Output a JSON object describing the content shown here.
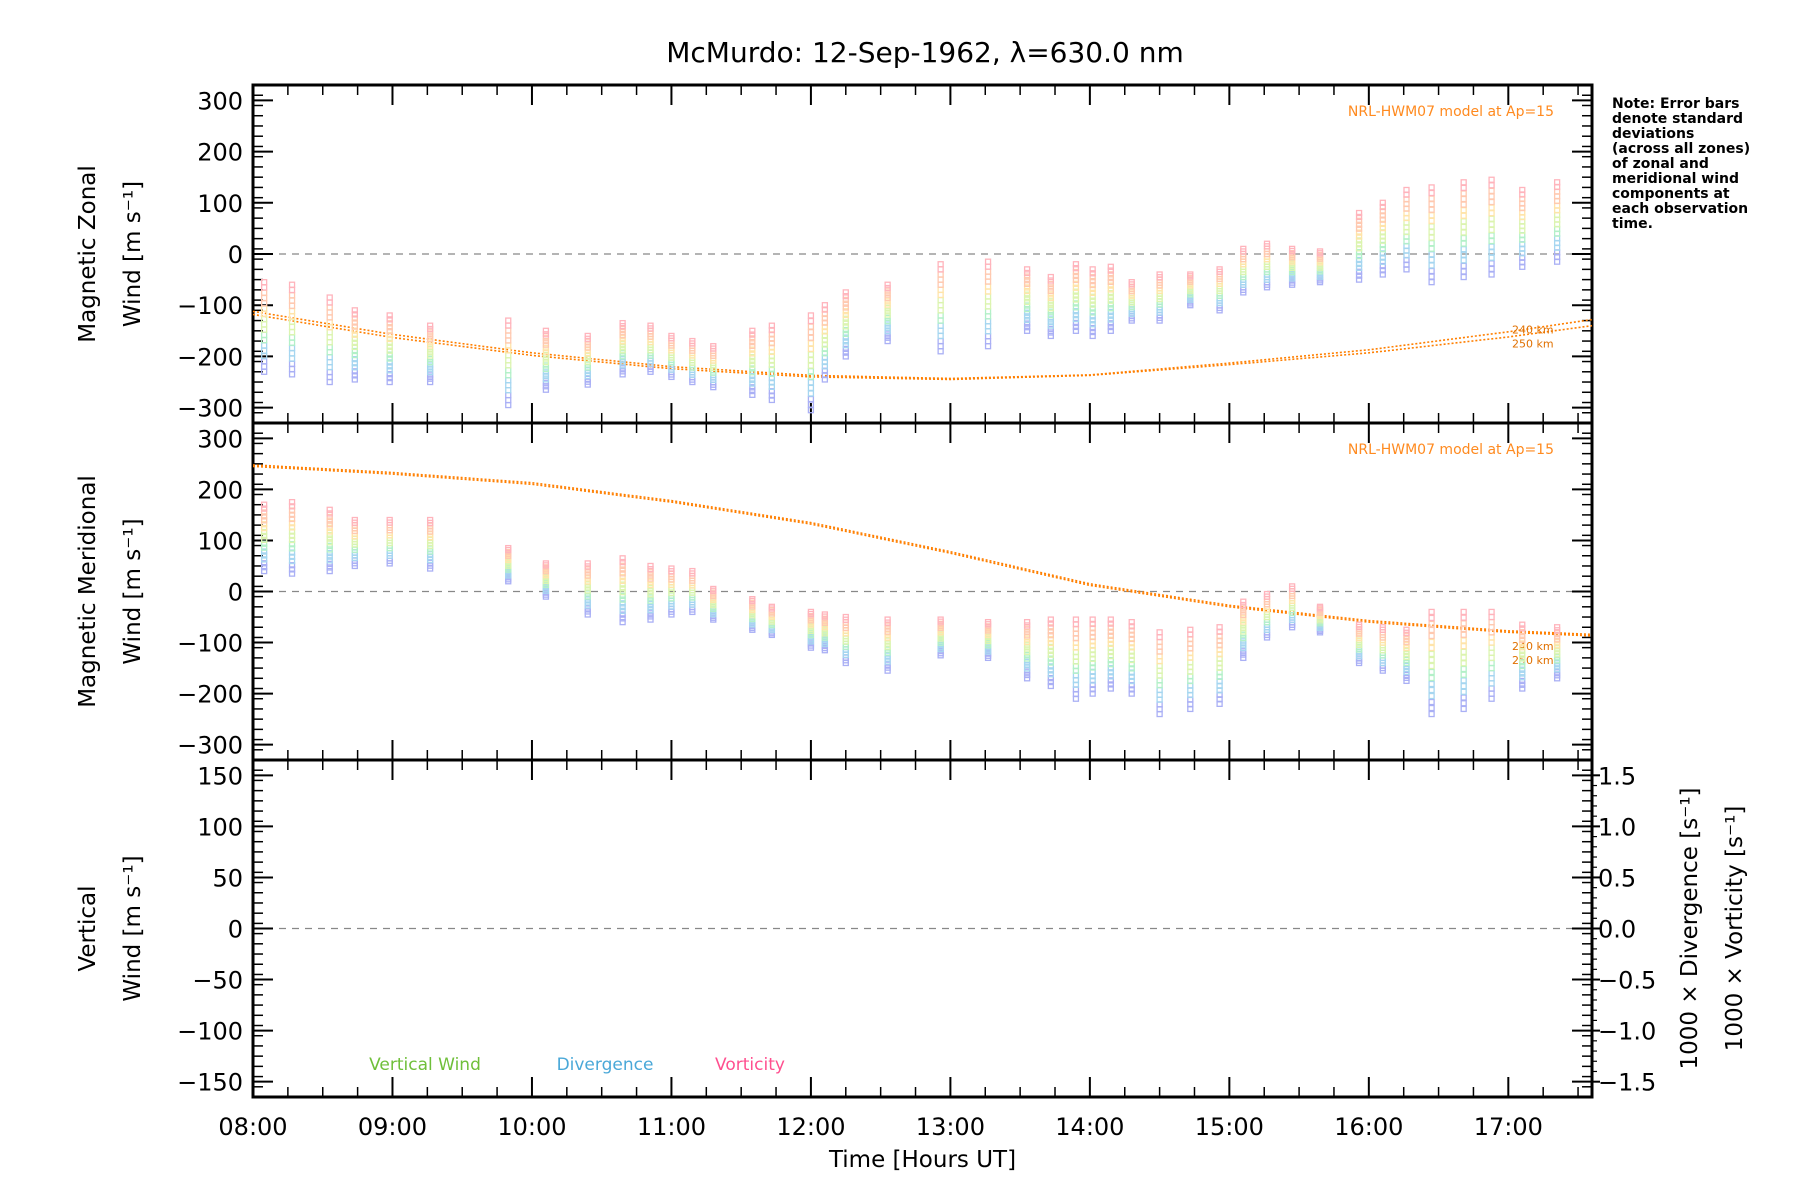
{
  "title": "McMurdo: 12-Sep-1962, λ=630.0 nm",
  "note": [
    "Note: Error bars",
    "denote standard",
    "deviations",
    "(across all zones)",
    "of zonal and",
    "meridional wind",
    "components at",
    "each observation",
    "time."
  ],
  "colors": {
    "model": "#ff7f00",
    "vertical": "#6fbf3a",
    "divergence": "#4aa8d8",
    "vorticity": "#ff4f8f",
    "zero_line": "#888888"
  },
  "chart_data": [
    {
      "type": "scatter",
      "panel": "zonal",
      "ylabel_line1": "Magnetic Zonal",
      "ylabel_line2": "Wind",
      "yunit": "[m s⁻¹]",
      "ylim": [
        -330,
        330
      ],
      "yticks": [
        300,
        200,
        100,
        0,
        -100,
        -200,
        -300
      ],
      "xlim": [
        8.0,
        17.6
      ],
      "zero_line": true,
      "model_label": "NRL-HWM07 model at Ap=15",
      "model_levels": [
        "240 km",
        "250 km"
      ],
      "model": {
        "x": [
          8.0,
          9.0,
          10.0,
          11.0,
          12.0,
          13.0,
          14.0,
          15.0,
          16.0,
          17.0,
          17.6
        ],
        "y240": [
          -112,
          -157,
          -193,
          -220,
          -237,
          -243,
          -236,
          -213,
          -187,
          -152,
          -128
        ],
        "y250": [
          -118,
          -163,
          -198,
          -224,
          -240,
          -245,
          -237,
          -216,
          -193,
          -162,
          -140
        ]
      },
      "observations": {
        "time": [
          8.08,
          8.28,
          8.55,
          8.73,
          8.98,
          9.27,
          9.83,
          10.1,
          10.4,
          10.65,
          10.85,
          11.0,
          11.15,
          11.3,
          11.58,
          11.72,
          12.0,
          12.1,
          12.25,
          12.55,
          12.93,
          13.27,
          13.55,
          13.72,
          13.9,
          14.02,
          14.15,
          14.3,
          14.5,
          14.72,
          14.93,
          15.1,
          15.27,
          15.45,
          15.65,
          15.93,
          16.1,
          16.27,
          16.45,
          16.68,
          16.88,
          17.1,
          17.35
        ],
        "low": [
          -230,
          -235,
          -250,
          -245,
          -250,
          -250,
          -295,
          -265,
          -255,
          -235,
          -230,
          -240,
          -250,
          -260,
          -275,
          -285,
          -305,
          -245,
          -200,
          -170,
          -190,
          -180,
          -150,
          -160,
          -150,
          -160,
          -150,
          -130,
          -130,
          -100,
          -110,
          -75,
          -65,
          -60,
          -55,
          -50,
          -40,
          -30,
          -55,
          -45,
          -40,
          -25,
          -15
        ],
        "high": [
          -55,
          -60,
          -85,
          -110,
          -120,
          -140,
          -130,
          -150,
          -160,
          -135,
          -140,
          -160,
          -170,
          -180,
          -150,
          -140,
          -120,
          -100,
          -75,
          -60,
          -20,
          -15,
          -30,
          -45,
          -20,
          -30,
          -25,
          -55,
          -40,
          -40,
          -30,
          10,
          20,
          10,
          5,
          80,
          100,
          125,
          130,
          140,
          145,
          125,
          140
        ]
      }
    },
    {
      "type": "scatter",
      "panel": "meridional",
      "ylabel_line1": "Magnetic Meridional",
      "ylabel_line2": "Wind",
      "yunit": "[m s⁻¹]",
      "ylim": [
        -330,
        330
      ],
      "yticks": [
        300,
        200,
        100,
        0,
        -100,
        -200,
        -300
      ],
      "xlim": [
        8.0,
        17.6
      ],
      "zero_line": true,
      "model_label": "NRL-HWM07 model at Ap=15",
      "model_levels": [
        "240 km",
        "250 km"
      ],
      "model": {
        "x": [
          8.0,
          9.0,
          10.0,
          11.0,
          12.0,
          13.0,
          14.0,
          15.0,
          16.0,
          17.0,
          17.6
        ],
        "y240": [
          245,
          230,
          210,
          175,
          132,
          75,
          12,
          -30,
          -60,
          -80,
          -87
        ],
        "y250": [
          248,
          233,
          213,
          178,
          135,
          78,
          15,
          -27,
          -57,
          -77,
          -84
        ]
      },
      "observations": {
        "time": [
          8.08,
          8.28,
          8.55,
          8.73,
          8.98,
          9.27,
          9.83,
          10.1,
          10.4,
          10.65,
          10.85,
          11.0,
          11.15,
          11.3,
          11.58,
          11.72,
          12.0,
          12.1,
          12.25,
          12.55,
          12.93,
          13.27,
          13.55,
          13.72,
          13.9,
          14.02,
          14.15,
          14.3,
          14.5,
          14.72,
          14.93,
          15.1,
          15.27,
          15.45,
          15.65,
          15.93,
          16.1,
          16.27,
          16.45,
          16.68,
          16.88,
          17.1,
          17.35
        ],
        "low": [
          40,
          35,
          40,
          50,
          55,
          45,
          20,
          -10,
          -45,
          -60,
          -55,
          -45,
          -40,
          -55,
          -75,
          -85,
          -110,
          -115,
          -140,
          -155,
          -125,
          -130,
          -170,
          -185,
          -210,
          -200,
          -190,
          -200,
          -240,
          -230,
          -220,
          -130,
          -90,
          -70,
          -80,
          -140,
          -155,
          -175,
          -240,
          -230,
          -210,
          -190,
          -170
        ],
        "high": [
          170,
          175,
          160,
          140,
          140,
          140,
          85,
          55,
          55,
          65,
          50,
          45,
          40,
          5,
          -15,
          -30,
          -40,
          -45,
          -50,
          -55,
          -55,
          -60,
          -60,
          -55,
          -55,
          -55,
          -55,
          -60,
          -80,
          -75,
          -70,
          -20,
          -5,
          10,
          -30,
          -65,
          -70,
          -75,
          -40,
          -40,
          -40,
          -65,
          -70
        ]
      }
    },
    {
      "type": "line",
      "panel": "vertical",
      "ylabel_line1": "Vertical",
      "ylabel_line2": "Wind",
      "yunit": "[m s⁻¹]",
      "ylim": [
        -165,
        165
      ],
      "yticks": [
        150,
        100,
        50,
        0,
        -50,
        -100,
        -150
      ],
      "y2label_divergence": "1000 × Divergence",
      "y2label_vorticity": "1000 × Vorticity",
      "y2unit": "[s⁻¹]",
      "y2lim": [
        -1.65,
        1.65
      ],
      "y2ticks": [
        "1.5",
        "1.0",
        "0.5",
        "0.0",
        "−0.5",
        "−1.0",
        "−1.5"
      ],
      "xlim": [
        8.0,
        17.6
      ],
      "zero_line": true,
      "legend": [
        "Vertical Wind",
        "Divergence",
        "Vorticity"
      ],
      "xlabel": "Time [Hours UT]",
      "xticks": [
        "08:00",
        "09:00",
        "10:00",
        "11:00",
        "12:00",
        "13:00",
        "14:00",
        "15:00",
        "16:00",
        "17:00"
      ],
      "series": []
    }
  ]
}
